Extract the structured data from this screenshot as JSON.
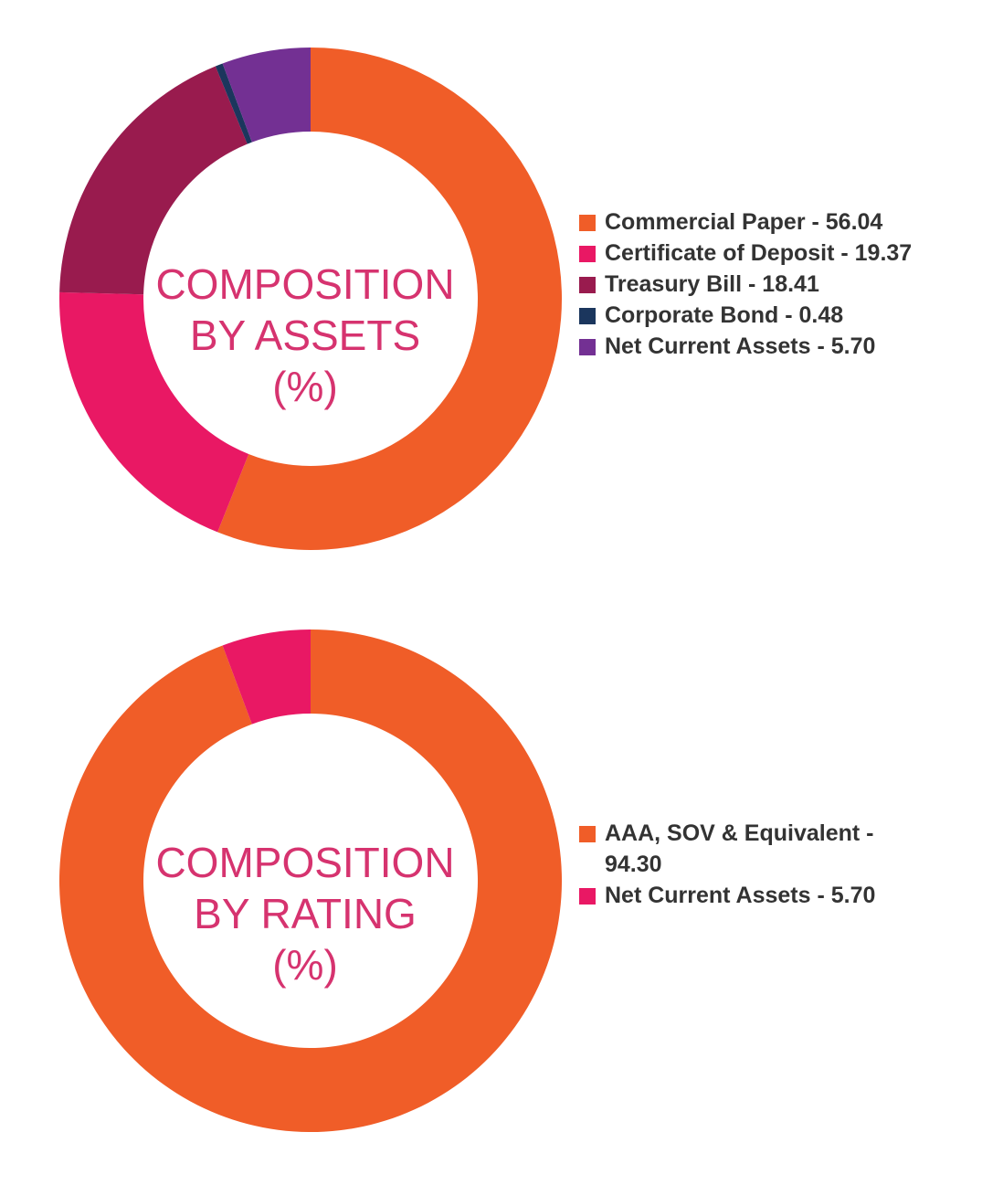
{
  "chart_data": [
    {
      "type": "pie",
      "title_lines": [
        "COMPOSITION",
        "BY ASSETS",
        "(%)"
      ],
      "slices": [
        {
          "label": "Commercial Paper - 56.04",
          "value": 56.04,
          "color": "#f05d28"
        },
        {
          "label": "Certificate of Deposit - 19.37",
          "value": 19.37,
          "color": "#e91864"
        },
        {
          "label": "Treasury Bill - 18.41",
          "value": 18.41,
          "color": "#991b4e"
        },
        {
          "label": "Corporate Bond - 0.48",
          "value": 0.48,
          "color": "#1b365d"
        },
        {
          "label": "Net Current Assets - 5.70",
          "value": 5.7,
          "color": "#733093"
        }
      ]
    },
    {
      "type": "pie",
      "title_lines": [
        "COMPOSITION",
        "BY RATING",
        "(%)"
      ],
      "slices": [
        {
          "label": "AAA, SOV & Equivalent - 94.30",
          "value": 94.3,
          "color": "#f05d28"
        },
        {
          "label": "Net Current Assets - 5.70",
          "value": 5.7,
          "color": "#e91864"
        }
      ]
    }
  ]
}
